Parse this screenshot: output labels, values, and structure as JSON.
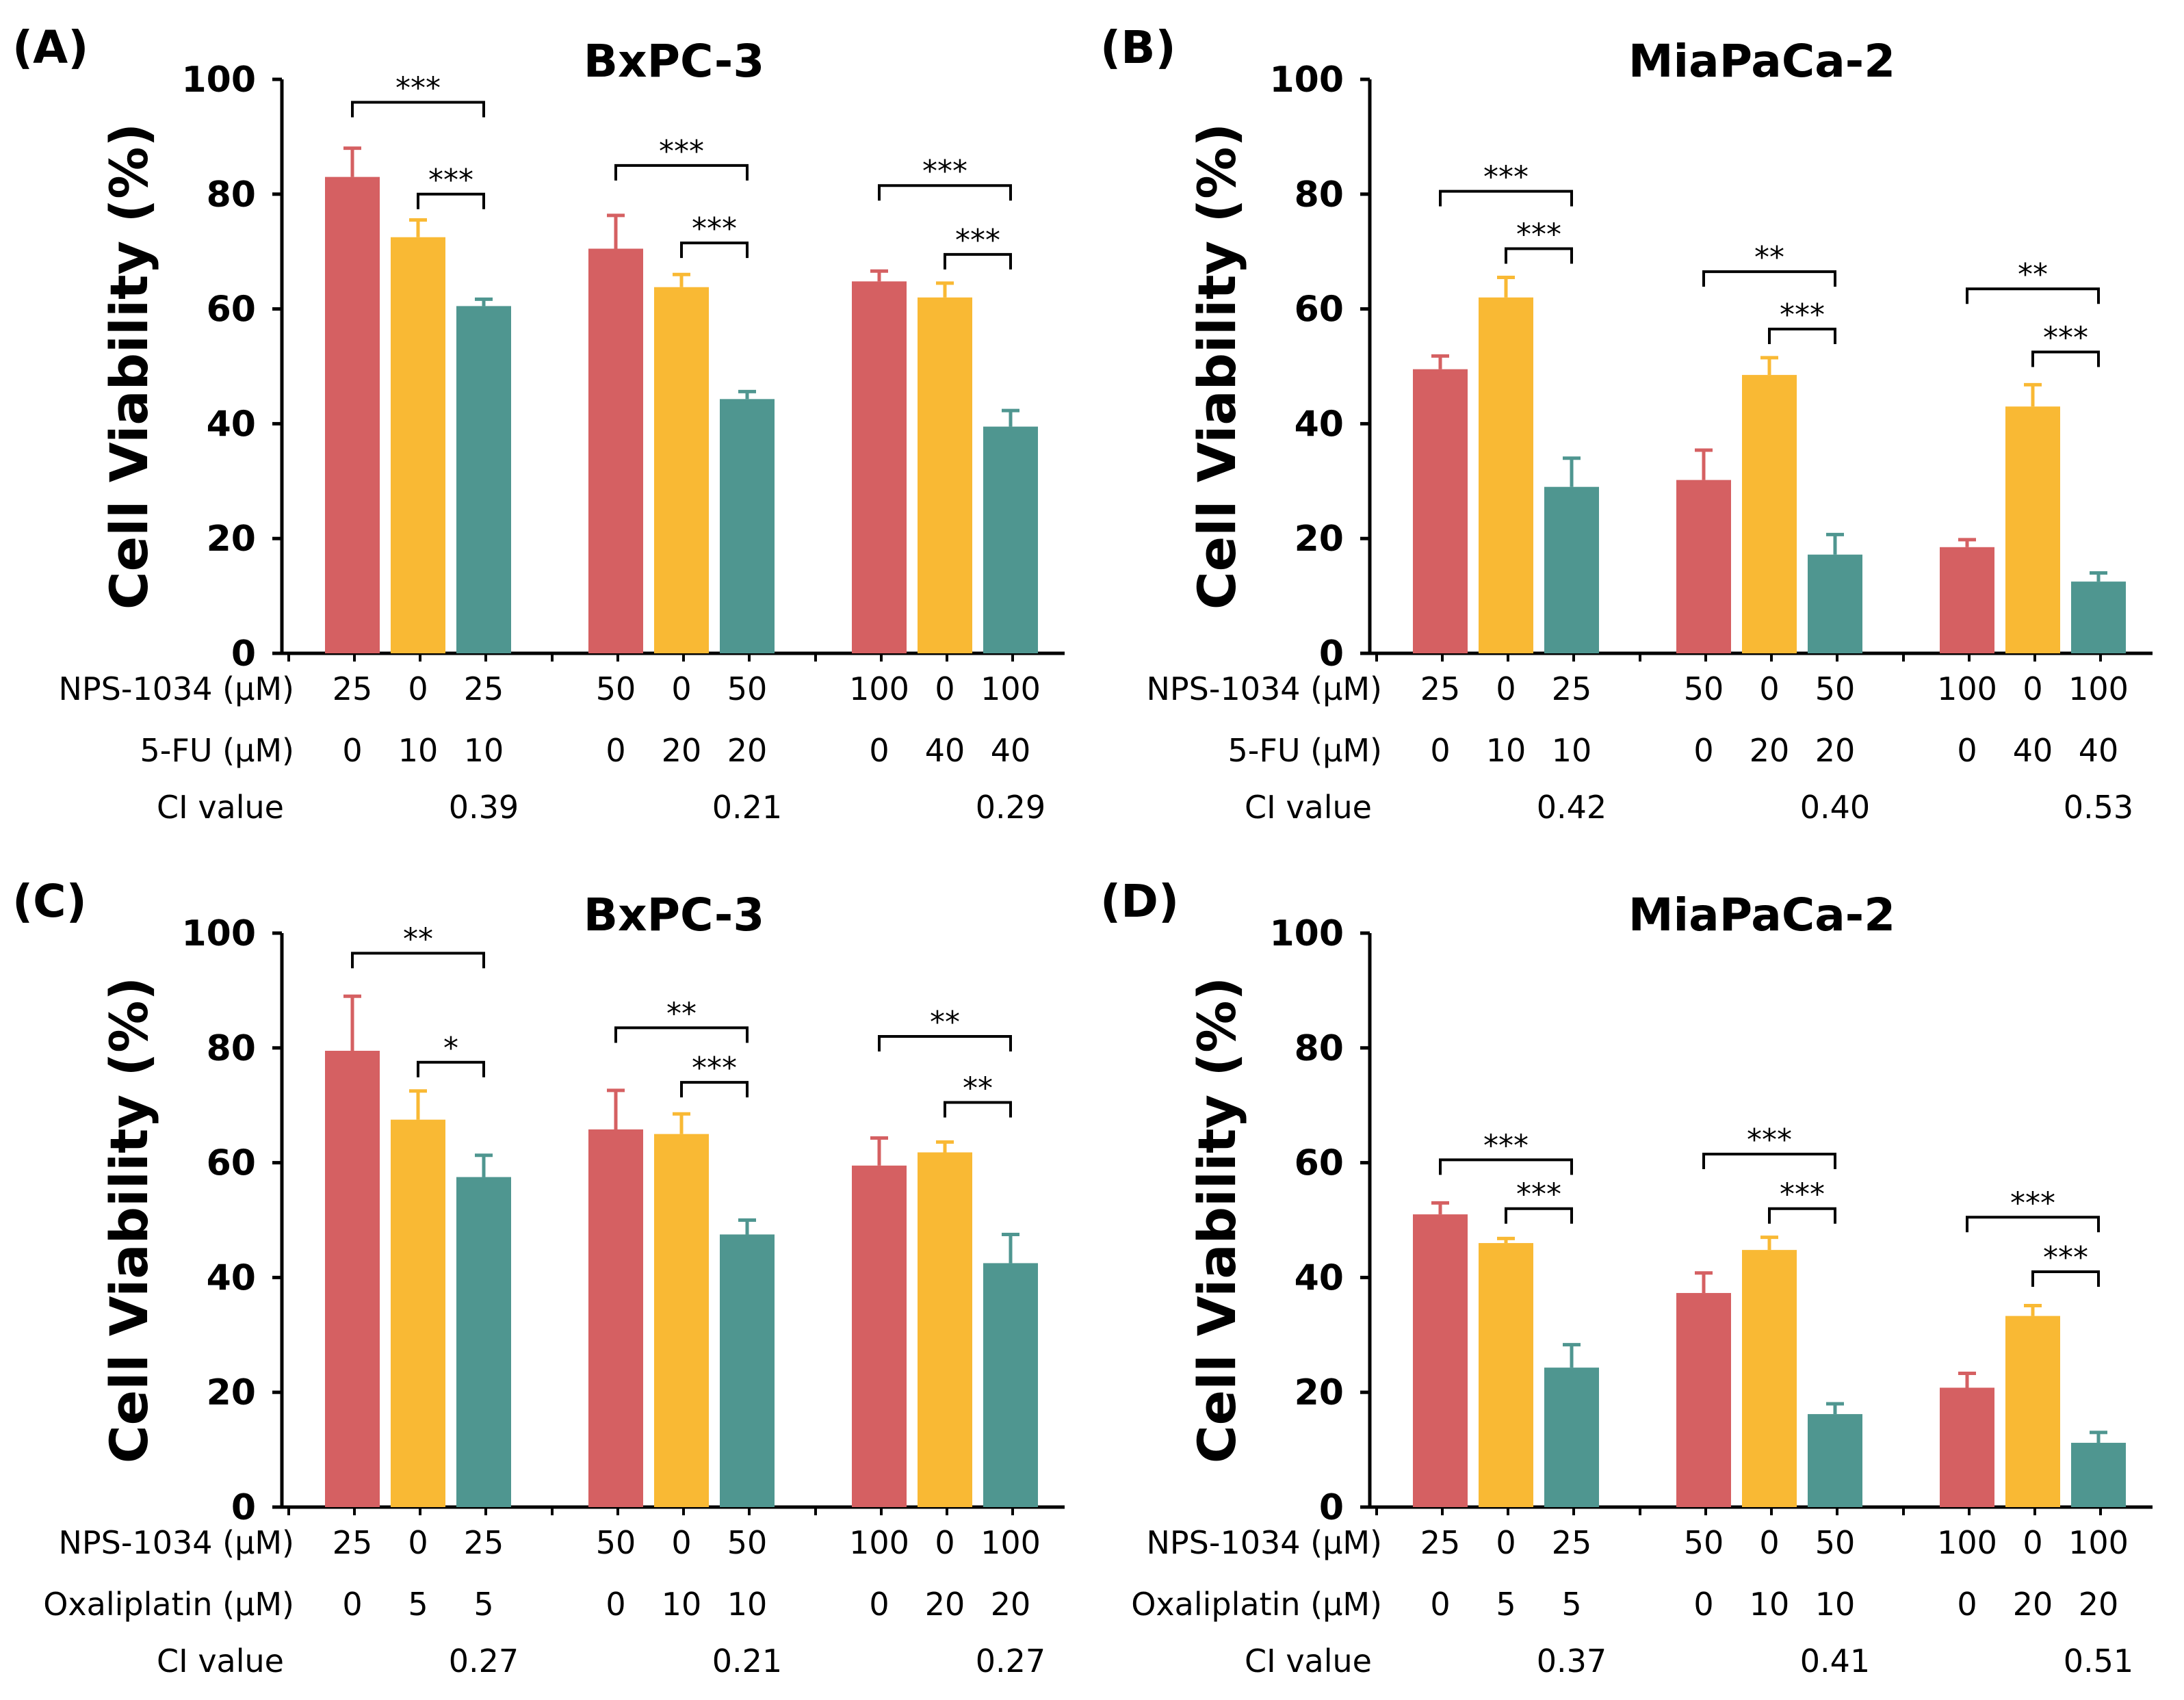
{
  "figure": {
    "colors": {
      "nps": "#D56062",
      "drug": "#F9B934",
      "combo": "#4F9690",
      "axis": "#000000"
    }
  },
  "chart_data": [
    {
      "type": "bar",
      "panel": "(A)",
      "title": "BxPC-3",
      "ylabel": "Cell Viability (%)",
      "ylim": [
        0,
        100
      ],
      "yticks": [
        "0",
        "20",
        "40",
        "60",
        "80",
        "100"
      ],
      "rows": [
        {
          "label": "NPS-1034 (μM)",
          "values": [
            "25",
            "0",
            "25",
            "50",
            "0",
            "50",
            "100",
            "0",
            "100"
          ]
        },
        {
          "label": "5-FU (μM)",
          "values": [
            "0",
            "10",
            "10",
            "0",
            "20",
            "20",
            "0",
            "40",
            "40"
          ]
        }
      ],
      "ci_label": "CI value",
      "ci_values": [
        "0.39",
        "0.21",
        "0.29"
      ],
      "groups": [
        {
          "values": [
            83,
            72.5,
            60.5
          ],
          "errors": [
            5,
            3,
            1.2
          ],
          "sig": [
            {
              "from": 0,
              "to": 2,
              "label": "***",
              "y": 96
            },
            {
              "from": 1,
              "to": 2,
              "label": "***",
              "y": 80
            }
          ]
        },
        {
          "values": [
            70.5,
            63.8,
            44.3
          ],
          "errors": [
            5.8,
            2.2,
            1.3
          ],
          "sig": [
            {
              "from": 0,
              "to": 2,
              "label": "***",
              "y": 85
            },
            {
              "from": 1,
              "to": 2,
              "label": "***",
              "y": 71.5
            }
          ]
        },
        {
          "values": [
            64.8,
            62,
            39.5
          ],
          "errors": [
            1.8,
            2.5,
            2.8
          ],
          "sig": [
            {
              "from": 0,
              "to": 2,
              "label": "***",
              "y": 81.5
            },
            {
              "from": 1,
              "to": 2,
              "label": "***",
              "y": 69.5
            }
          ]
        }
      ]
    },
    {
      "type": "bar",
      "panel": "(B)",
      "title": "MiaPaCa-2",
      "ylabel": "Cell Viability (%)",
      "ylim": [
        0,
        100
      ],
      "yticks": [
        "0",
        "20",
        "40",
        "60",
        "80",
        "100"
      ],
      "rows": [
        {
          "label": "NPS-1034 (μM)",
          "values": [
            "25",
            "0",
            "25",
            "50",
            "0",
            "50",
            "100",
            "0",
            "100"
          ]
        },
        {
          "label": "5-FU (μM)",
          "values": [
            "0",
            "10",
            "10",
            "0",
            "20",
            "20",
            "0",
            "40",
            "40"
          ]
        }
      ],
      "ci_label": "CI value",
      "ci_values": [
        "0.42",
        "0.40",
        "0.53"
      ],
      "groups": [
        {
          "values": [
            49.5,
            62,
            29
          ],
          "errors": [
            2.3,
            3.5,
            5
          ],
          "sig": [
            {
              "from": 0,
              "to": 2,
              "label": "***",
              "y": 80.5
            },
            {
              "from": 1,
              "to": 2,
              "label": "***",
              "y": 70.5
            }
          ]
        },
        {
          "values": [
            30.2,
            48.5,
            17.2
          ],
          "errors": [
            5.2,
            3,
            3.5
          ],
          "sig": [
            {
              "from": 0,
              "to": 2,
              "label": "**",
              "y": 66.5
            },
            {
              "from": 1,
              "to": 2,
              "label": "***",
              "y": 56.5
            }
          ]
        },
        {
          "values": [
            18.5,
            43,
            12.5
          ],
          "errors": [
            1.3,
            3.8,
            1.5
          ],
          "sig": [
            {
              "from": 0,
              "to": 2,
              "label": "**",
              "y": 63.5
            },
            {
              "from": 1,
              "to": 2,
              "label": "***",
              "y": 52.5
            }
          ]
        }
      ]
    },
    {
      "type": "bar",
      "panel": "(C)",
      "title": "BxPC-3",
      "ylabel": "Cell Viability (%)",
      "ylim": [
        0,
        100
      ],
      "yticks": [
        "0",
        "20",
        "40",
        "60",
        "80",
        "100"
      ],
      "rows": [
        {
          "label": "NPS-1034 (μM)",
          "values": [
            "25",
            "0",
            "25",
            "50",
            "0",
            "50",
            "100",
            "0",
            "100"
          ]
        },
        {
          "label": "Oxaliplatin (μM)",
          "values": [
            "0",
            "5",
            "5",
            "0",
            "10",
            "10",
            "0",
            "20",
            "20"
          ]
        }
      ],
      "ci_label": "CI value",
      "ci_values": [
        "0.27",
        "0.21",
        "0.27"
      ],
      "groups": [
        {
          "values": [
            79.5,
            67.5,
            57.5
          ],
          "errors": [
            9.5,
            5,
            3.8
          ],
          "sig": [
            {
              "from": 0,
              "to": 2,
              "label": "**",
              "y": 96.5
            },
            {
              "from": 1,
              "to": 2,
              "label": "*",
              "y": 77.5
            }
          ]
        },
        {
          "values": [
            65.8,
            65,
            47.5
          ],
          "errors": [
            6.8,
            3.5,
            2.5
          ],
          "sig": [
            {
              "from": 0,
              "to": 2,
              "label": "**",
              "y": 83.5
            },
            {
              "from": 1,
              "to": 2,
              "label": "***",
              "y": 74
            }
          ]
        },
        {
          "values": [
            59.5,
            61.8,
            42.5
          ],
          "errors": [
            4.8,
            1.8,
            5
          ],
          "sig": [
            {
              "from": 0,
              "to": 2,
              "label": "**",
              "y": 82
            },
            {
              "from": 1,
              "to": 2,
              "label": "**",
              "y": 70.5
            }
          ]
        }
      ]
    },
    {
      "type": "bar",
      "panel": "(D)",
      "title": "MiaPaCa-2",
      "ylabel": "Cell Viability (%)",
      "ylim": [
        0,
        100
      ],
      "yticks": [
        "0",
        "20",
        "40",
        "60",
        "80",
        "100"
      ],
      "rows": [
        {
          "label": "NPS-1034 (μM)",
          "values": [
            "25",
            "0",
            "25",
            "50",
            "0",
            "50",
            "100",
            "0",
            "100"
          ]
        },
        {
          "label": "Oxaliplatin (μM)",
          "values": [
            "0",
            "5",
            "5",
            "0",
            "10",
            "10",
            "0",
            "20",
            "20"
          ]
        }
      ],
      "ci_label": "CI value",
      "ci_values": [
        "0.37",
        "0.41",
        "0.51"
      ],
      "groups": [
        {
          "values": [
            51,
            46,
            24.3
          ],
          "errors": [
            2,
            0.8,
            4
          ],
          "sig": [
            {
              "from": 0,
              "to": 2,
              "label": "***",
              "y": 60.5
            },
            {
              "from": 1,
              "to": 2,
              "label": "***",
              "y": 52
            }
          ]
        },
        {
          "values": [
            37.3,
            44.8,
            16.2
          ],
          "errors": [
            3.5,
            2.2,
            1.8
          ],
          "sig": [
            {
              "from": 0,
              "to": 2,
              "label": "***",
              "y": 61.5
            },
            {
              "from": 1,
              "to": 2,
              "label": "***",
              "y": 52
            }
          ]
        },
        {
          "values": [
            20.8,
            33.3,
            11.2
          ],
          "errors": [
            2.5,
            1.8,
            1.8
          ],
          "sig": [
            {
              "from": 0,
              "to": 2,
              "label": "***",
              "y": 50.5
            },
            {
              "from": 1,
              "to": 2,
              "label": "***",
              "y": 41
            }
          ]
        }
      ]
    }
  ]
}
